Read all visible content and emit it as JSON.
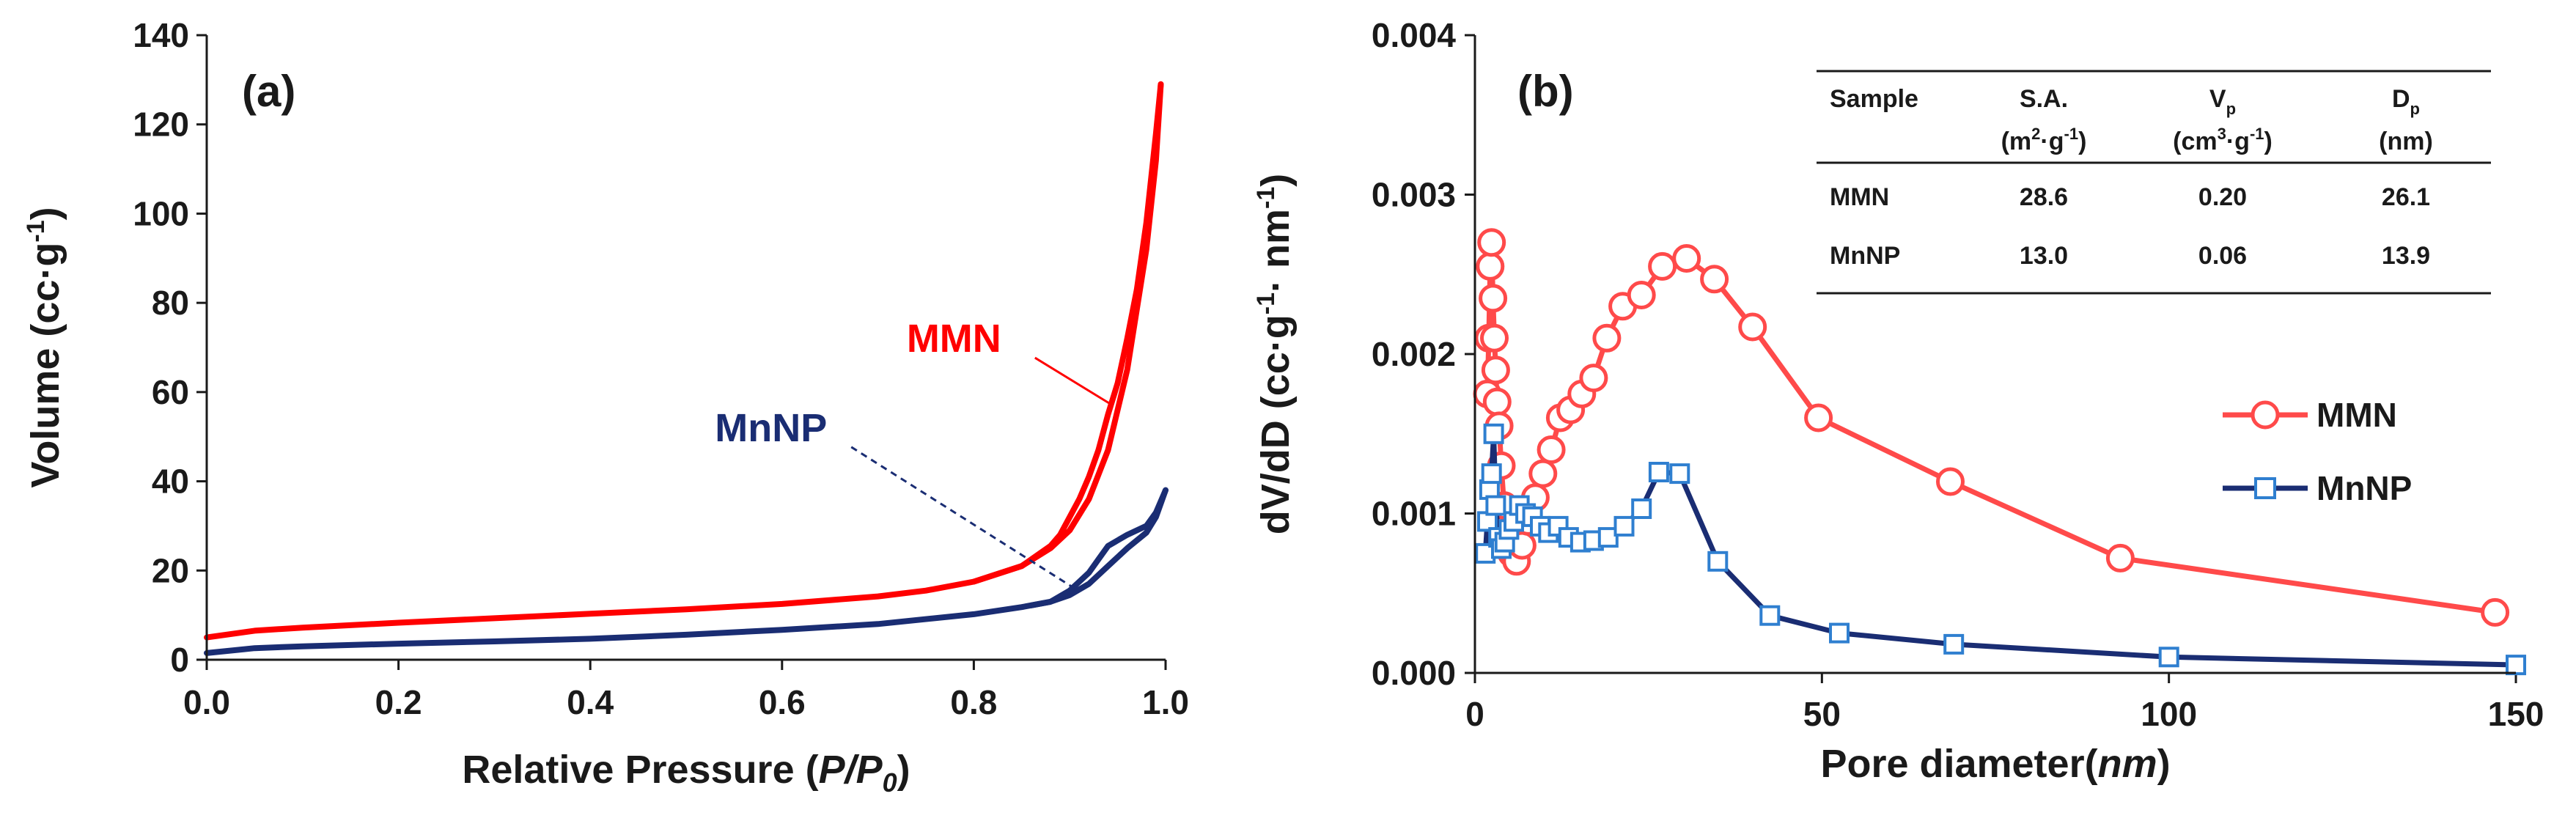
{
  "colors": {
    "mmn": "#ff0000",
    "mnnp": "#1a2d73",
    "mmn_b": "#ff4a4a",
    "mnnp_marker": "#2f7fd0",
    "axis": "#1a1a1a"
  },
  "chart_data": [
    {
      "type": "line",
      "panel_label": "(a)",
      "title": "",
      "xlabel": "Relative Pressure (",
      "xlabel_italic": "P/P",
      "xlabel_sub": "0",
      "xlabel_close": ")",
      "ylabel": "Volume (cc·g",
      "ylabel_sup": "-1",
      "ylabel_close": ")",
      "xlim": [
        0.0,
        1.0
      ],
      "ylim": [
        0,
        140
      ],
      "xticks": [
        "0.0",
        "0.2",
        "0.4",
        "0.6",
        "0.8",
        "1.0"
      ],
      "yticks": [
        "0",
        "20",
        "40",
        "60",
        "80",
        "100",
        "120",
        "140"
      ],
      "grid": false,
      "series": [
        {
          "name": "MMN",
          "adsorption": {
            "x": [
              0.0,
              0.05,
              0.1,
              0.2,
              0.3,
              0.4,
              0.5,
              0.6,
              0.7,
              0.75,
              0.8,
              0.85,
              0.88,
              0.9,
              0.92,
              0.94,
              0.96,
              0.98,
              0.99,
              0.995
            ],
            "y": [
              5,
              6.5,
              7.2,
              8.3,
              9.3,
              10.3,
              11.3,
              12.5,
              14.2,
              15.5,
              17.5,
              21,
              25,
              29,
              36,
              47,
              65,
              92,
              112,
              129
            ]
          },
          "desorption": {
            "x": [
              0.995,
              0.99,
              0.98,
              0.97,
              0.96,
              0.95,
              0.94,
              0.93,
              0.92,
              0.91,
              0.9,
              0.89,
              0.88,
              0.85,
              0.8
            ],
            "y": [
              129,
              118,
              98,
              83,
              72,
              62,
              55,
              47,
              41,
              36,
              32,
              28,
              25.5,
              21,
              17.5
            ]
          }
        },
        {
          "name": "MnNP",
          "adsorption": {
            "x": [
              0.0,
              0.05,
              0.1,
              0.2,
              0.3,
              0.4,
              0.5,
              0.6,
              0.7,
              0.8,
              0.85,
              0.88,
              0.9,
              0.92,
              0.94,
              0.96,
              0.98,
              0.99,
              1.0
            ],
            "y": [
              1.5,
              2.6,
              3.0,
              3.6,
              4.1,
              4.7,
              5.6,
              6.7,
              8.0,
              10.2,
              11.8,
              13.0,
              14.5,
              17,
              21,
              25,
              28.5,
              32,
              38
            ]
          },
          "desorption": {
            "x": [
              1.0,
              0.99,
              0.98,
              0.96,
              0.94,
              0.93,
              0.92,
              0.91,
              0.9,
              0.88,
              0.86
            ],
            "y": [
              38,
              33,
              30,
              28,
              25.5,
              22.5,
              19.5,
              17.5,
              15.5,
              13.0,
              12.2
            ]
          }
        }
      ],
      "annotations": [
        {
          "text": "MMN",
          "label_at": [
            0.73,
            69
          ],
          "pointer_to": [
            0.945,
            57
          ],
          "style": "solid"
        },
        {
          "text": "MnNP",
          "label_at": [
            0.53,
            49
          ],
          "pointer_to": [
            0.905,
            16
          ],
          "style": "dashed"
        }
      ]
    },
    {
      "type": "line",
      "panel_label": "(b)",
      "title": "",
      "xlabel": "Pore  diameter(",
      "xlabel_italic": "nm",
      "xlabel_close": ")",
      "ylabel": "dV/dD (cc·g",
      "ylabel_sup": "-1",
      "ylabel_mid": "· nm",
      "ylabel_sup2": "-1",
      "ylabel_close": ")",
      "xlim": [
        0,
        150
      ],
      "ylim": [
        0.0,
        0.004
      ],
      "xticks": [
        "0",
        "50",
        "100",
        "150"
      ],
      "yticks": [
        "0.000",
        "0.001",
        "0.002",
        "0.003",
        "0.004"
      ],
      "grid": false,
      "legend_position": "middle-right",
      "series": [
        {
          "name": "MMN",
          "marker": "circle",
          "x": [
            1.8,
            2.0,
            2.2,
            2.4,
            2.6,
            2.8,
            3.0,
            3.2,
            3.5,
            3.8,
            4.2,
            4.7,
            5.3,
            6.0,
            6.8,
            7.7,
            8.7,
            9.8,
            11.0,
            12.3,
            13.8,
            15.4,
            17.1,
            19.0,
            21.3,
            24.0,
            27.0,
            30.5,
            34.5,
            40.0,
            49.5,
            68.5,
            93.0,
            147.0
          ],
          "y": [
            0.00175,
            0.0021,
            0.00255,
            0.0027,
            0.00235,
            0.0021,
            0.0019,
            0.0017,
            0.00155,
            0.0013,
            0.00105,
            0.00085,
            0.00075,
            0.0007,
            0.0008,
            0.00095,
            0.0011,
            0.00125,
            0.0014,
            0.0016,
            0.00165,
            0.00175,
            0.00185,
            0.0021,
            0.0023,
            0.00237,
            0.00255,
            0.0026,
            0.00247,
            0.00217,
            0.0016,
            0.0012,
            0.00072,
            0.00038
          ]
        },
        {
          "name": "MnNP",
          "marker": "square",
          "x": [
            1.5,
            1.8,
            2.1,
            2.4,
            2.7,
            3.0,
            3.4,
            3.8,
            4.3,
            4.9,
            5.6,
            6.4,
            7.3,
            8.3,
            9.4,
            10.6,
            12.0,
            13.5,
            15.2,
            17.1,
            19.2,
            21.5,
            24.0,
            26.5,
            29.5,
            35.0,
            42.5,
            52.5,
            69.0,
            100.0,
            150.0
          ],
          "y": [
            0.00075,
            0.00095,
            0.00115,
            0.00125,
            0.0015,
            0.00105,
            0.00085,
            0.00078,
            0.00082,
            0.0009,
            0.00095,
            0.00105,
            0.001,
            0.00098,
            0.00092,
            0.00088,
            0.00092,
            0.00085,
            0.00082,
            0.00083,
            0.00085,
            0.00092,
            0.00103,
            0.00126,
            0.00125,
            0.0007,
            0.00036,
            0.00025,
            0.00018,
            0.0001,
            5e-05
          ]
        }
      ],
      "table": {
        "headers": [
          {
            "main": "Sample"
          },
          {
            "main": "S.A.",
            "line2": "(m",
            "line2_sup1": "2",
            "line2_mid": "·g",
            "line2_sup2": "-1",
            "line2_close": ")"
          },
          {
            "main": "V",
            "main_sub": "p",
            "line2": "(cm",
            "line2_sup1": "3",
            "line2_mid": "·g",
            "line2_sup2": "-1",
            "line2_close": ")"
          },
          {
            "main": "D",
            "main_sub": "p",
            "line2": "(nm)"
          }
        ],
        "rows": [
          [
            "MMN",
            "28.6",
            "0.20",
            "26.1"
          ],
          [
            "MnNP",
            "13.0",
            "0.06",
            "13.9"
          ]
        ]
      }
    }
  ]
}
